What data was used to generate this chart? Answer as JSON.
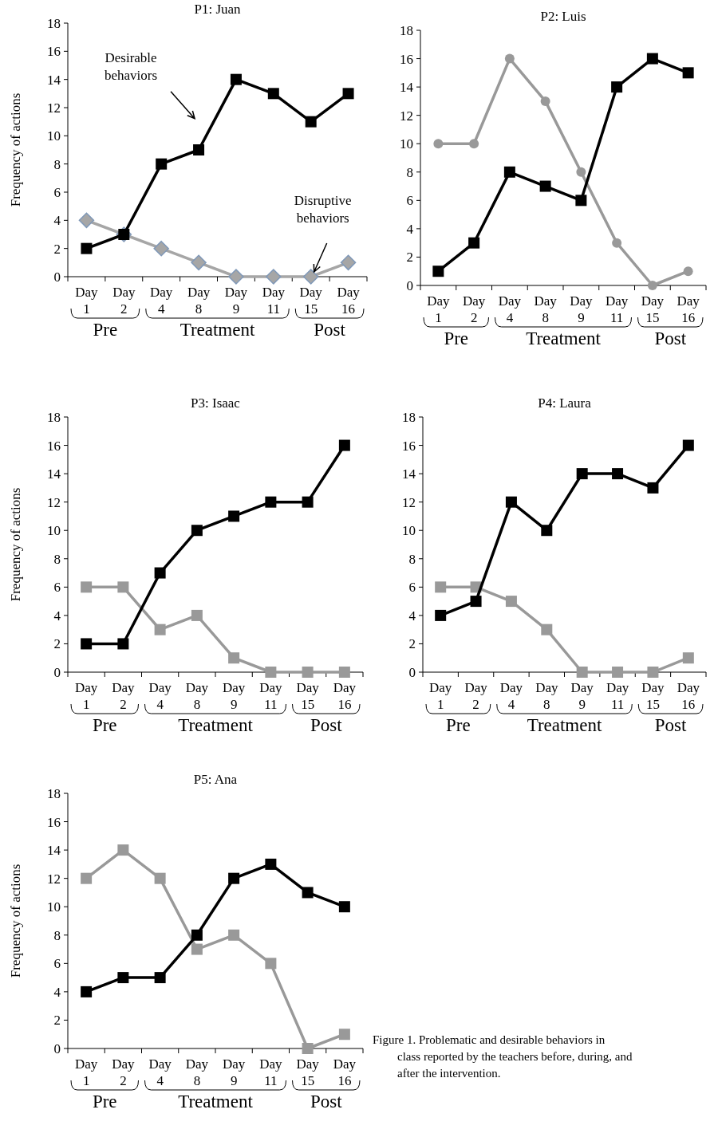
{
  "chart_data": [
    {
      "type": "line",
      "title": "P1: Juan",
      "ylabel": "Frequency of actions",
      "categories": [
        "Day 1",
        "Day 2",
        "Day 4",
        "Day 8",
        "Day 9",
        "Day 11",
        "Day 15",
        "Day 16"
      ],
      "ylim": [
        0,
        18
      ],
      "yticks": [
        0,
        2,
        4,
        6,
        8,
        10,
        12,
        14,
        16,
        18
      ],
      "marker": "square",
      "series": [
        {
          "color": "#000000",
          "values": [
            2,
            3,
            8,
            9,
            14,
            13,
            11,
            13
          ]
        },
        {
          "color": "#a6a6a6",
          "marker": "diamond",
          "values": [
            4,
            3,
            2,
            1,
            0,
            0,
            0,
            1
          ]
        }
      ],
      "annotations": [
        "Pre",
        "Treatment",
        "Post",
        "Desirable behaviors",
        "Disruptive behaviors"
      ]
    },
    {
      "type": "line",
      "title": "P2: Luis",
      "categories": [
        "Day 1",
        "Day 2",
        "Day 4",
        "Day 8",
        "Day 9",
        "Day 11",
        "Day 15",
        "Day 16"
      ],
      "ylim": [
        0,
        18
      ],
      "yticks": [
        0,
        2,
        4,
        6,
        8,
        10,
        12,
        14,
        16,
        18
      ],
      "marker": "square",
      "series": [
        {
          "color": "#000000",
          "values": [
            1,
            3,
            8,
            7,
            6,
            14,
            16,
            15
          ]
        },
        {
          "color": "#999999",
          "marker": "circle",
          "values": [
            10,
            10,
            16,
            13,
            8,
            3,
            0,
            1
          ]
        }
      ],
      "annotations": [
        "Pre",
        "Treatment",
        "Post"
      ]
    },
    {
      "type": "line",
      "title": "P3: Isaac",
      "ylabel": "Frequency of actions",
      "categories": [
        "Day 1",
        "Day 2",
        "Day 4",
        "Day 8",
        "Day 9",
        "Day 11",
        "Day 15",
        "Day 16"
      ],
      "ylim": [
        0,
        18
      ],
      "yticks": [
        0,
        2,
        4,
        6,
        8,
        10,
        12,
        14,
        16,
        18
      ],
      "marker": "square",
      "series": [
        {
          "color": "#000000",
          "values": [
            2,
            2,
            7,
            10,
            11,
            12,
            12,
            16
          ]
        },
        {
          "color": "#999999",
          "values": [
            6,
            6,
            3,
            4,
            1,
            0,
            0,
            0
          ]
        }
      ],
      "annotations": [
        "Pre",
        "Treatment",
        "Post"
      ]
    },
    {
      "type": "line",
      "title": "P4: Laura",
      "categories": [
        "Day 1",
        "Day 2",
        "Day 4",
        "Day 8",
        "Day 9",
        "Day 11",
        "Day 15",
        "Day 16"
      ],
      "ylim": [
        0,
        18
      ],
      "yticks": [
        0,
        2,
        4,
        6,
        8,
        10,
        12,
        14,
        16,
        18
      ],
      "marker": "square",
      "series": [
        {
          "color": "#000000",
          "values": [
            4,
            5,
            12,
            10,
            14,
            14,
            13,
            16
          ]
        },
        {
          "color": "#999999",
          "values": [
            6,
            6,
            5,
            3,
            0,
            0,
            0,
            1
          ]
        }
      ],
      "annotations": [
        "Pre",
        "Treatment",
        "Post"
      ]
    },
    {
      "type": "line",
      "title": "P5: Ana",
      "ylabel": "Frequency of actions",
      "categories": [
        "Day 1",
        "Day 2",
        "Day 4",
        "Day 8",
        "Day 9",
        "Day 11",
        "Day 15",
        "Day 16"
      ],
      "ylim": [
        0,
        18
      ],
      "yticks": [
        0,
        2,
        4,
        6,
        8,
        10,
        12,
        14,
        16,
        18
      ],
      "marker": "square",
      "series": [
        {
          "color": "#000000",
          "values": [
            4,
            5,
            5,
            8,
            12,
            13,
            11,
            10
          ]
        },
        {
          "color": "#999999",
          "values": [
            12,
            14,
            12,
            7,
            8,
            6,
            0,
            1
          ]
        }
      ],
      "annotations": [
        "Pre",
        "Treatment",
        "Post",
        "Figure 1. Problematic and desirable behaviors in class reported by the teachers before, during, and after the intervention."
      ]
    }
  ]
}
